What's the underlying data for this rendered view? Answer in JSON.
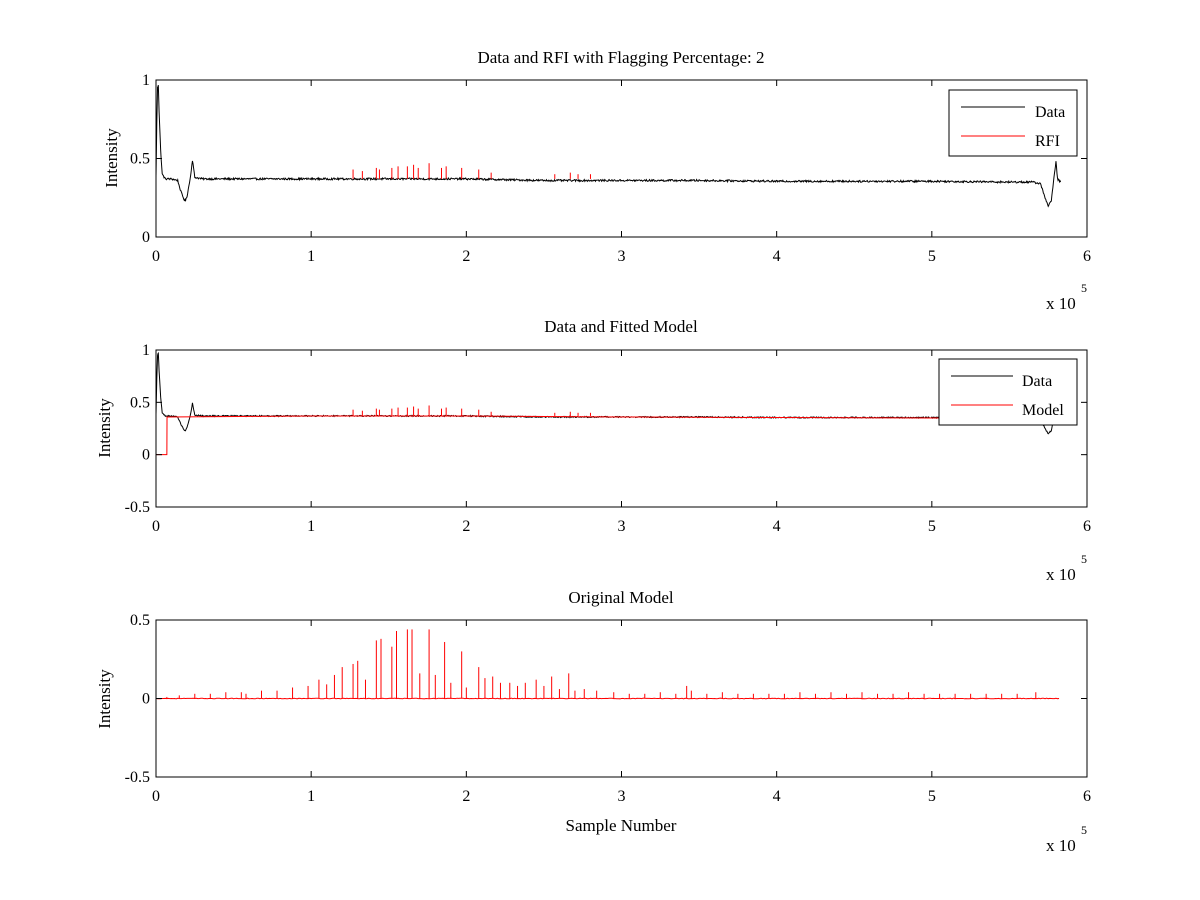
{
  "figure": {
    "background": "#ffffff"
  },
  "chart_data": [
    {
      "type": "line",
      "title": "Data and RFI with Flagging Percentage: 2",
      "xlabel": "",
      "ylabel": "Intensity",
      "xlim": [
        0,
        6
      ],
      "ylim": [
        0,
        1
      ],
      "xticks": [
        0,
        1,
        2,
        3,
        4,
        5,
        6
      ],
      "yticks": [
        0,
        0.5,
        1
      ],
      "xtick_labels": [
        "0",
        "1",
        "2",
        "3",
        "4",
        "5",
        "6"
      ],
      "ytick_labels": [
        "0",
        "0.5",
        "1"
      ],
      "x_exponent_label": "x 10",
      "x_exponent_power": "5",
      "grid": false,
      "legend_position": "top-right",
      "series": [
        {
          "name": "Data",
          "color": "#000000",
          "points": [
            [
              0.0,
              0.38
            ],
            [
              0.005,
              0.72
            ],
            [
              0.01,
              0.95
            ],
            [
              0.015,
              0.97
            ],
            [
              0.02,
              0.8
            ],
            [
              0.03,
              0.55
            ],
            [
              0.04,
              0.4
            ],
            [
              0.06,
              0.37
            ],
            [
              0.1,
              0.37
            ],
            [
              0.14,
              0.36
            ],
            [
              0.16,
              0.29
            ],
            [
              0.18,
              0.24
            ],
            [
              0.19,
              0.23
            ],
            [
              0.2,
              0.26
            ],
            [
              0.22,
              0.37
            ],
            [
              0.235,
              0.49
            ],
            [
              0.25,
              0.38
            ],
            [
              0.3,
              0.37
            ],
            [
              0.5,
              0.37
            ],
            [
              1.0,
              0.37
            ],
            [
              1.5,
              0.37
            ],
            [
              2.0,
              0.37
            ],
            [
              2.5,
              0.36
            ],
            [
              3.0,
              0.36
            ],
            [
              3.5,
              0.36
            ],
            [
              4.0,
              0.355
            ],
            [
              4.5,
              0.355
            ],
            [
              5.0,
              0.355
            ],
            [
              5.5,
              0.35
            ],
            [
              5.65,
              0.35
            ],
            [
              5.7,
              0.34
            ],
            [
              5.73,
              0.25
            ],
            [
              5.75,
              0.2
            ],
            [
              5.77,
              0.23
            ],
            [
              5.79,
              0.4
            ],
            [
              5.8,
              0.48
            ],
            [
              5.81,
              0.37
            ],
            [
              5.83,
              0.35
            ]
          ]
        },
        {
          "name": "RFI",
          "color": "#ff0000",
          "spike_base": 0.37,
          "spikes": [
            [
              1.27,
              0.43
            ],
            [
              1.33,
              0.42
            ],
            [
              1.42,
              0.44
            ],
            [
              1.44,
              0.43
            ],
            [
              1.52,
              0.44
            ],
            [
              1.56,
              0.45
            ],
            [
              1.62,
              0.45
            ],
            [
              1.66,
              0.46
            ],
            [
              1.69,
              0.44
            ],
            [
              1.76,
              0.47
            ],
            [
              1.84,
              0.44
            ],
            [
              1.87,
              0.45
            ],
            [
              1.97,
              0.44
            ],
            [
              2.08,
              0.43
            ],
            [
              2.16,
              0.41
            ],
            [
              2.57,
              0.4
            ],
            [
              2.67,
              0.41
            ],
            [
              2.72,
              0.4
            ],
            [
              2.8,
              0.4
            ]
          ]
        }
      ]
    },
    {
      "type": "line",
      "title": "Data and Fitted Model",
      "xlabel": "",
      "ylabel": "Intensity",
      "xlim": [
        0,
        6
      ],
      "ylim": [
        -0.5,
        1
      ],
      "xticks": [
        0,
        1,
        2,
        3,
        4,
        5,
        6
      ],
      "yticks": [
        -0.5,
        0,
        0.5,
        1
      ],
      "xtick_labels": [
        "0",
        "1",
        "2",
        "3",
        "4",
        "5",
        "6"
      ],
      "ytick_labels": [
        "-0.5",
        "0",
        "0.5",
        "1"
      ],
      "x_exponent_label": "x 10",
      "x_exponent_power": "5",
      "grid": false,
      "legend_position": "top-right",
      "series": [
        {
          "name": "Data",
          "color": "#000000",
          "points": [
            [
              0.0,
              0.38
            ],
            [
              0.005,
              0.72
            ],
            [
              0.01,
              0.95
            ],
            [
              0.015,
              0.97
            ],
            [
              0.02,
              0.8
            ],
            [
              0.03,
              0.55
            ],
            [
              0.04,
              0.4
            ],
            [
              0.06,
              0.37
            ],
            [
              0.1,
              0.37
            ],
            [
              0.14,
              0.36
            ],
            [
              0.16,
              0.29
            ],
            [
              0.18,
              0.24
            ],
            [
              0.19,
              0.23
            ],
            [
              0.2,
              0.26
            ],
            [
              0.22,
              0.37
            ],
            [
              0.235,
              0.49
            ],
            [
              0.25,
              0.38
            ],
            [
              0.3,
              0.37
            ],
            [
              0.5,
              0.37
            ],
            [
              1.0,
              0.37
            ],
            [
              1.5,
              0.37
            ],
            [
              2.0,
              0.37
            ],
            [
              2.5,
              0.36
            ],
            [
              3.0,
              0.36
            ],
            [
              3.5,
              0.36
            ],
            [
              4.0,
              0.355
            ],
            [
              4.5,
              0.355
            ],
            [
              5.0,
              0.355
            ],
            [
              5.5,
              0.35
            ],
            [
              5.65,
              0.35
            ],
            [
              5.7,
              0.34
            ],
            [
              5.73,
              0.25
            ],
            [
              5.75,
              0.2
            ],
            [
              5.77,
              0.23
            ],
            [
              5.79,
              0.4
            ],
            [
              5.8,
              0.48
            ],
            [
              5.81,
              0.37
            ],
            [
              5.83,
              0.35
            ]
          ]
        },
        {
          "name": "Model",
          "color": "#ff0000",
          "points": [
            [
              0.0,
              0.0
            ],
            [
              0.07,
              0.0
            ],
            [
              0.071,
              0.36
            ],
            [
              1.0,
              0.37
            ],
            [
              2.0,
              0.37
            ],
            [
              3.0,
              0.36
            ],
            [
              4.0,
              0.355
            ],
            [
              5.0,
              0.35
            ],
            [
              5.83,
              0.35
            ]
          ],
          "spike_base": 0.37,
          "spikes": [
            [
              1.27,
              0.43
            ],
            [
              1.33,
              0.42
            ],
            [
              1.42,
              0.44
            ],
            [
              1.44,
              0.43
            ],
            [
              1.52,
              0.44
            ],
            [
              1.56,
              0.45
            ],
            [
              1.62,
              0.45
            ],
            [
              1.66,
              0.46
            ],
            [
              1.69,
              0.44
            ],
            [
              1.76,
              0.47
            ],
            [
              1.84,
              0.44
            ],
            [
              1.87,
              0.45
            ],
            [
              1.97,
              0.44
            ],
            [
              2.08,
              0.43
            ],
            [
              2.16,
              0.41
            ],
            [
              2.57,
              0.4
            ],
            [
              2.67,
              0.41
            ],
            [
              2.72,
              0.4
            ],
            [
              2.8,
              0.4
            ]
          ]
        }
      ]
    },
    {
      "type": "line",
      "title": "Original Model",
      "xlabel": "Sample Number",
      "ylabel": "Intensity",
      "xlim": [
        0,
        6
      ],
      "ylim": [
        -0.5,
        0.5
      ],
      "xticks": [
        0,
        1,
        2,
        3,
        4,
        5,
        6
      ],
      "yticks": [
        -0.5,
        0,
        0.5
      ],
      "xtick_labels": [
        "0",
        "1",
        "2",
        "3",
        "4",
        "5",
        "6"
      ],
      "ytick_labels": [
        "-0.5",
        "0",
        "0.5"
      ],
      "x_exponent_label": "x 10",
      "x_exponent_power": "5",
      "grid": false,
      "legend_position": "none",
      "series": [
        {
          "color": "#ff0000",
          "spike_base": 0.0,
          "x_range": [
            0,
            5.82
          ],
          "spikes": [
            [
              0.07,
              0.01
            ],
            [
              0.15,
              0.02
            ],
            [
              0.25,
              0.03
            ],
            [
              0.35,
              0.03
            ],
            [
              0.45,
              0.04
            ],
            [
              0.55,
              0.04
            ],
            [
              0.58,
              0.03
            ],
            [
              0.68,
              0.05
            ],
            [
              0.78,
              0.05
            ],
            [
              0.88,
              0.07
            ],
            [
              0.98,
              0.08
            ],
            [
              1.05,
              0.12
            ],
            [
              1.1,
              0.09
            ],
            [
              1.15,
              0.15
            ],
            [
              1.2,
              0.2
            ],
            [
              1.27,
              0.22
            ],
            [
              1.3,
              0.24
            ],
            [
              1.35,
              0.12
            ],
            [
              1.42,
              0.37
            ],
            [
              1.45,
              0.38
            ],
            [
              1.52,
              0.33
            ],
            [
              1.55,
              0.43
            ],
            [
              1.62,
              0.44
            ],
            [
              1.65,
              0.44
            ],
            [
              1.7,
              0.16
            ],
            [
              1.76,
              0.44
            ],
            [
              1.8,
              0.15
            ],
            [
              1.86,
              0.36
            ],
            [
              1.9,
              0.1
            ],
            [
              1.97,
              0.3
            ],
            [
              2.0,
              0.07
            ],
            [
              2.08,
              0.2
            ],
            [
              2.12,
              0.13
            ],
            [
              2.17,
              0.14
            ],
            [
              2.22,
              0.1
            ],
            [
              2.28,
              0.1
            ],
            [
              2.33,
              0.08
            ],
            [
              2.38,
              0.1
            ],
            [
              2.45,
              0.12
            ],
            [
              2.5,
              0.08
            ],
            [
              2.55,
              0.14
            ],
            [
              2.6,
              0.06
            ],
            [
              2.66,
              0.16
            ],
            [
              2.7,
              0.05
            ],
            [
              2.76,
              0.06
            ],
            [
              2.84,
              0.05
            ],
            [
              2.95,
              0.04
            ],
            [
              3.05,
              0.03
            ],
            [
              3.15,
              0.03
            ],
            [
              3.25,
              0.04
            ],
            [
              3.35,
              0.03
            ],
            [
              3.42,
              0.08
            ],
            [
              3.45,
              0.05
            ],
            [
              3.55,
              0.03
            ],
            [
              3.65,
              0.04
            ],
            [
              3.75,
              0.03
            ],
            [
              3.85,
              0.03
            ],
            [
              3.95,
              0.03
            ],
            [
              4.05,
              0.03
            ],
            [
              4.15,
              0.04
            ],
            [
              4.25,
              0.03
            ],
            [
              4.35,
              0.04
            ],
            [
              4.45,
              0.03
            ],
            [
              4.55,
              0.04
            ],
            [
              4.65,
              0.03
            ],
            [
              4.75,
              0.03
            ],
            [
              4.85,
              0.04
            ],
            [
              4.95,
              0.03
            ],
            [
              5.05,
              0.03
            ],
            [
              5.15,
              0.03
            ],
            [
              5.25,
              0.03
            ],
            [
              5.35,
              0.03
            ],
            [
              5.45,
              0.03
            ],
            [
              5.55,
              0.03
            ],
            [
              5.67,
              0.04
            ]
          ]
        }
      ]
    }
  ]
}
